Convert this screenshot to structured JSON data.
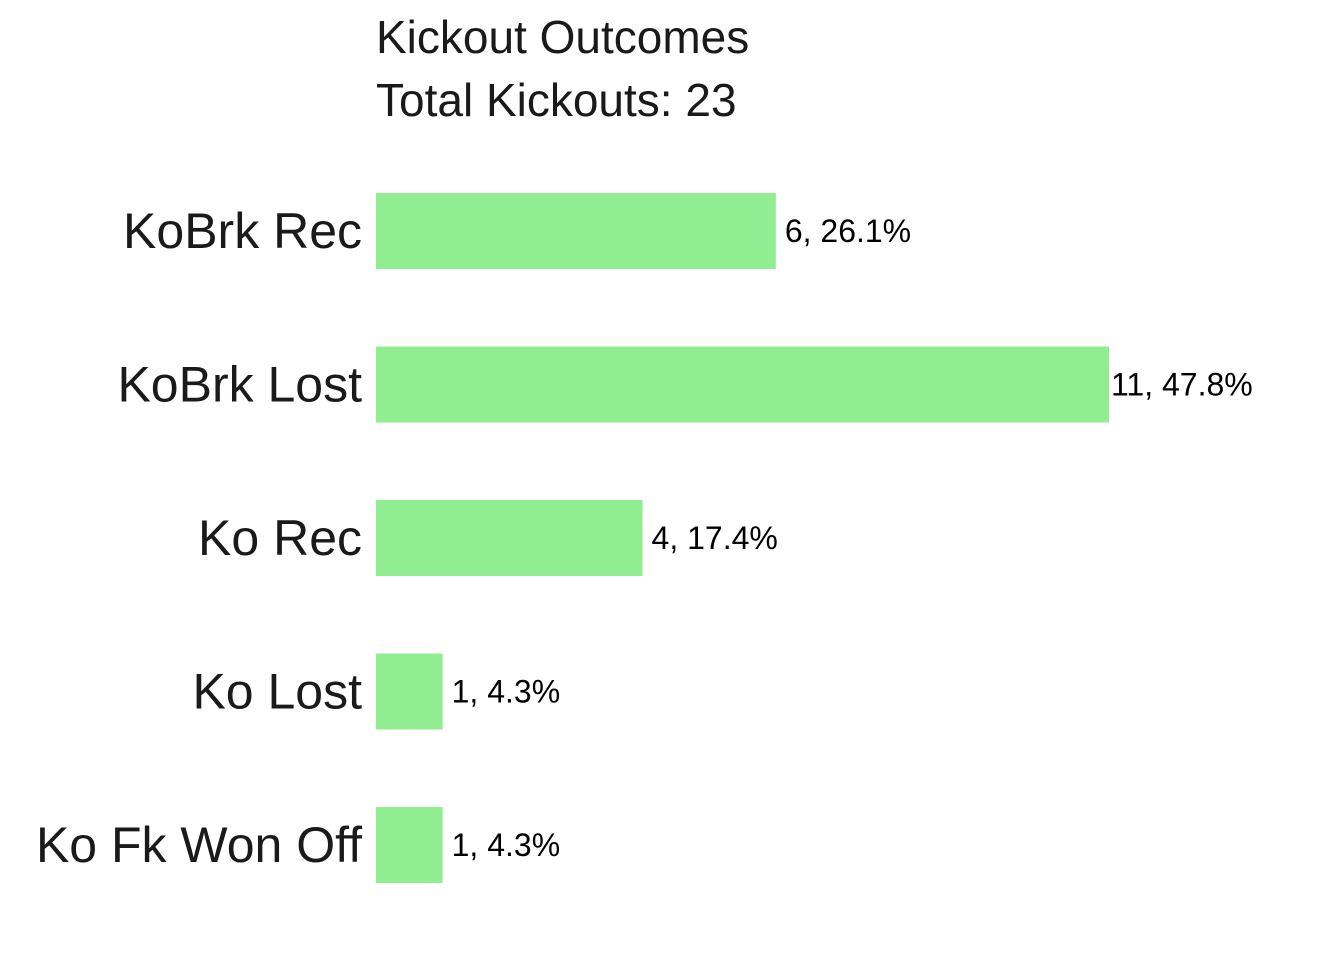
{
  "chart_data": {
    "type": "bar",
    "orientation": "horizontal",
    "title": "Kickout Outcomes",
    "subtitle": "Total Kickouts: 23",
    "xlabel": "",
    "ylabel": "",
    "grid": false,
    "legend": "none",
    "xlim": [
      0,
      11
    ],
    "bar_color": "#90EE90",
    "categories": [
      "KoBrk Rec",
      "KoBrk Lost",
      "Ko Rec",
      "Ko Lost",
      "Ko Fk Won Off"
    ],
    "values": [
      6,
      11,
      4,
      1,
      1
    ],
    "percentages": [
      26.1,
      47.8,
      17.4,
      4.3,
      4.3
    ],
    "data_labels": [
      "6, 26.1%",
      "11, 47.8%",
      "4, 17.4%",
      "1, 4.3%",
      "1, 4.3%"
    ]
  }
}
